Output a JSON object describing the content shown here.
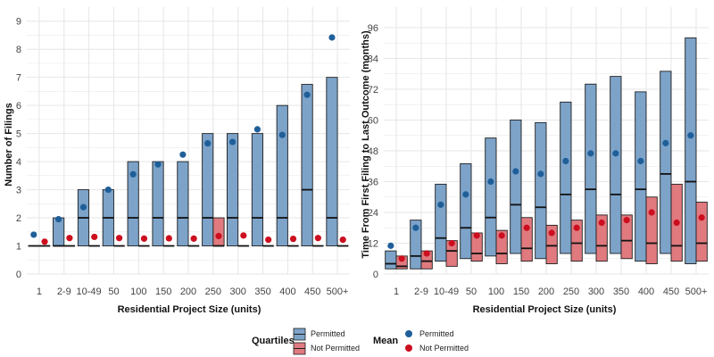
{
  "colors": {
    "permitted_fill": "#7DA3C9",
    "permitted_stroke": "#1F1F1F",
    "not_permitted_fill": "#E07A7F",
    "permitted_point": "#1F5F99",
    "not_permitted_point": "#CC0E1F",
    "grid": "#E6E6E6"
  },
  "chart_data": [
    {
      "type": "box",
      "xlabel": "Residential Project Size (units)",
      "ylabel": "Number of Filings",
      "ylim": [
        0,
        9.5
      ],
      "yticks": [
        0,
        1,
        2,
        3,
        4,
        5,
        6,
        7,
        8,
        9
      ],
      "categories": [
        "1",
        "2-9",
        "10-49",
        "50",
        "100",
        "150",
        "200",
        "250",
        "300",
        "350",
        "400",
        "450",
        "500+"
      ],
      "series": [
        {
          "name": "Permitted",
          "q1": [
            1,
            1,
            1,
            1,
            1,
            1,
            1,
            1,
            1,
            1,
            1,
            1,
            1
          ],
          "median": [
            1,
            1,
            2,
            2,
            2,
            2,
            2,
            2,
            2,
            2,
            2,
            3,
            2
          ],
          "q3": [
            1,
            2,
            3,
            3,
            4,
            4,
            4,
            5,
            5,
            5,
            6,
            6.75,
            7
          ],
          "mean": [
            1.4,
            1.95,
            2.38,
            3.0,
            3.55,
            3.9,
            4.25,
            4.65,
            4.7,
            5.15,
            4.95,
            6.38,
            8.42
          ]
        },
        {
          "name": "Not Permitted",
          "q1": [
            1,
            1,
            1,
            1,
            1,
            1,
            1,
            1,
            1,
            1,
            1,
            1,
            1
          ],
          "median": [
            1,
            1,
            1,
            1,
            1,
            1,
            1,
            1,
            1,
            1,
            1,
            1,
            1
          ],
          "q3": [
            1,
            1,
            1,
            1,
            1,
            1,
            1,
            2,
            1,
            1,
            1,
            1,
            1
          ],
          "mean": [
            1.15,
            1.28,
            1.32,
            1.28,
            1.26,
            1.27,
            1.26,
            1.35,
            1.37,
            1.22,
            1.25,
            1.28,
            1.22
          ]
        }
      ]
    },
    {
      "type": "box",
      "xlabel": "Residential Project Size (units)",
      "ylabel": "Time From First Filing to Last Outcome (months)",
      "ylim": [
        0,
        104
      ],
      "yticks": [
        0,
        12,
        24,
        36,
        48,
        60,
        72,
        84,
        96
      ],
      "categories": [
        "1",
        "2-9",
        "10-49",
        "50",
        "100",
        "150",
        "200",
        "250",
        "300",
        "350",
        "400",
        "450",
        "500+"
      ],
      "series": [
        {
          "name": "Permitted",
          "q1": [
            2,
            2,
            5,
            6,
            7,
            8,
            6,
            8,
            8,
            8,
            5,
            8,
            4
          ],
          "median": [
            4,
            7,
            14,
            18,
            22,
            27,
            26,
            31,
            33,
            31,
            33,
            39,
            36
          ],
          "q3": [
            9,
            21,
            35,
            43,
            53,
            60,
            59,
            67,
            74,
            77,
            71,
            79,
            92
          ],
          "mean": [
            11,
            18,
            27,
            31,
            36,
            40,
            39,
            44,
            47,
            47,
            44,
            51,
            54
          ]
        },
        {
          "name": "Not Permitted",
          "q1": [
            2,
            2,
            3,
            5,
            4,
            5,
            4,
            5,
            5,
            6,
            4,
            5,
            5
          ],
          "median": [
            3,
            5,
            9,
            8,
            8,
            10,
            11,
            12,
            11,
            13,
            12,
            11,
            12
          ],
          "q3": [
            7,
            9,
            13,
            16,
            17,
            22,
            19,
            21,
            23,
            23,
            30,
            35,
            28
          ],
          "mean": [
            6,
            8,
            12,
            15,
            15,
            18,
            16,
            18,
            20,
            21,
            24,
            20,
            22
          ]
        }
      ]
    }
  ],
  "legend": {
    "quartiles_title": "Quartiles",
    "mean_title": "Mean",
    "permitted_label": "Permitted",
    "not_permitted_label": "Not Permitted"
  }
}
